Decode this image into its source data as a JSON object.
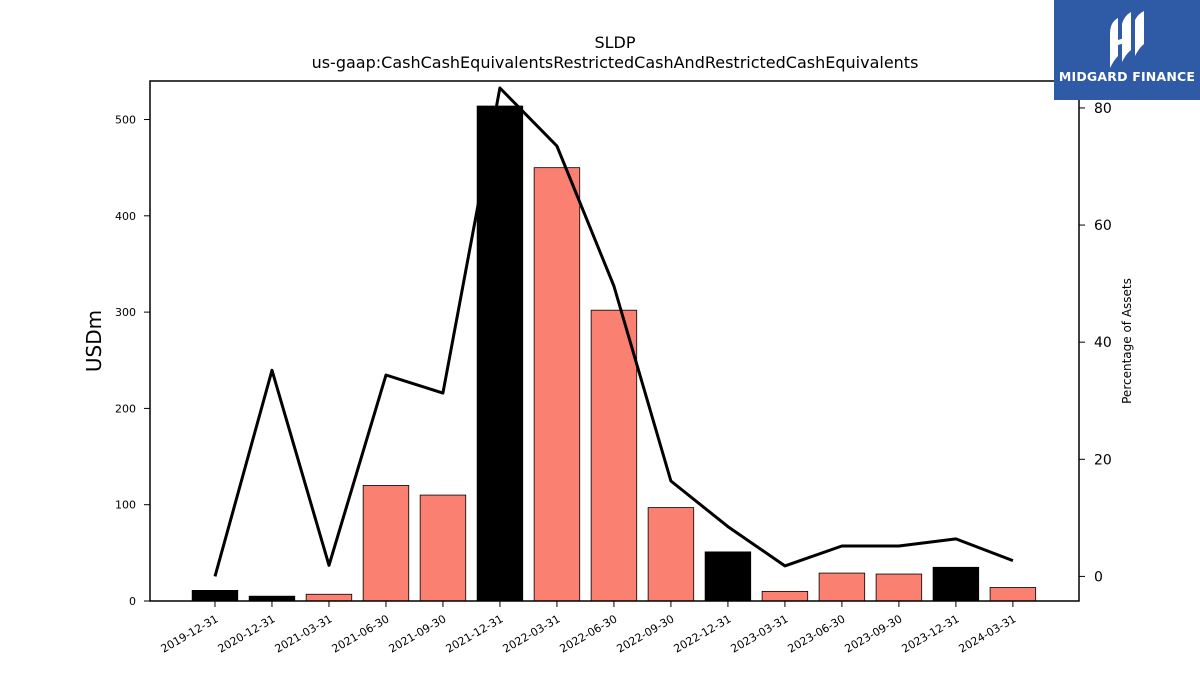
{
  "logo": {
    "text": "MIDGARD FINANCE",
    "icon": "midgard-m-logo-icon",
    "color": "#2f5aa6"
  },
  "chart_data": {
    "type": "bar",
    "title": "SLDP",
    "subtitle": "us-gaap:CashCashEquivalentsRestrictedCashAndRestrictedCashEquivalents",
    "ylabel": "USDm",
    "y2label": "Percentage of Assets",
    "ylim": [
      0,
      540
    ],
    "y2lim": [
      -4.2,
      84.6
    ],
    "yticks": [
      0,
      100,
      200,
      300,
      400,
      500
    ],
    "y2ticks": [
      0,
      20,
      40,
      60,
      80
    ],
    "categories": [
      "2019-12-31",
      "2020-12-31",
      "2021-03-31",
      "2021-06-30",
      "2021-09-30",
      "2021-12-31",
      "2022-03-31",
      "2022-06-30",
      "2022-09-30",
      "2022-12-31",
      "2023-03-31",
      "2023-06-30",
      "2023-09-30",
      "2023-12-31",
      "2024-03-31"
    ],
    "series": [
      {
        "kind": "bar",
        "values": [
          11,
          5,
          7,
          120,
          110,
          514,
          450,
          302,
          97,
          51,
          10,
          29,
          28,
          35,
          14
        ],
        "colors": [
          "#000000",
          "#000000",
          "#fa8072",
          "#fa8072",
          "#fa8072",
          "#000000",
          "#fa8072",
          "#fa8072",
          "#fa8072",
          "#000000",
          "#fa8072",
          "#fa8072",
          "#fa8072",
          "#000000",
          "#fa8072"
        ]
      },
      {
        "kind": "line",
        "axis": "right",
        "color": "#000000",
        "values": [
          0,
          35.2,
          1.9,
          34.4,
          31.3,
          83.4,
          73.5,
          49.6,
          16.3,
          8.5,
          1.8,
          5.2,
          5.2,
          6.4,
          2.7
        ]
      }
    ]
  }
}
